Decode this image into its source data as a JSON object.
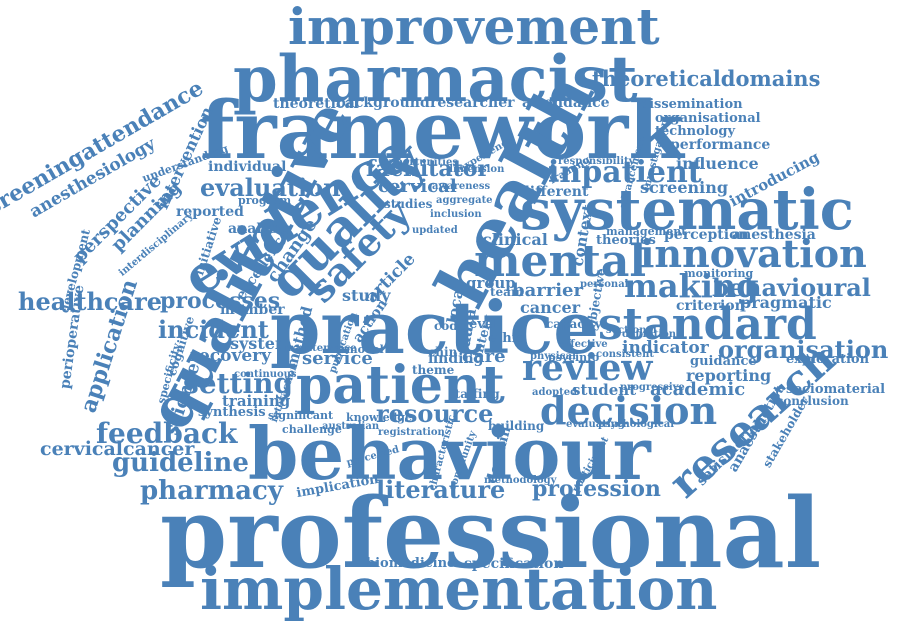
{
  "text_color": "#4a81b8",
  "background": "#ffffff",
  "words": [
    {
      "text": "improvement"
    },
    {
      "text": "pharmacist"
    },
    {
      "text": "framework"
    },
    {
      "text": "theoreticaldomains"
    },
    {
      "text": "theoretical"
    },
    {
      "text": "background"
    },
    {
      "text": "researcher"
    },
    {
      "text": "attendance"
    },
    {
      "text": "dissemination"
    },
    {
      "text": "organisational"
    },
    {
      "text": "technology"
    },
    {
      "text": "performance"
    },
    {
      "text": "influence"
    },
    {
      "text": "introducing"
    },
    {
      "text": "screeningattendance"
    },
    {
      "text": "anesthesiology"
    },
    {
      "text": "intervention"
    },
    {
      "text": "understanding"
    },
    {
      "text": "individual"
    },
    {
      "text": "evaluation"
    },
    {
      "text": "facilitator"
    },
    {
      "text": "inpatient"
    },
    {
      "text": "screening"
    },
    {
      "text": "cervical"
    },
    {
      "text": "different"
    },
    {
      "text": "qualitative"
    },
    {
      "text": "evidence"
    },
    {
      "text": "quality"
    },
    {
      "text": "health"
    },
    {
      "text": "systematic"
    },
    {
      "text": "safety"
    },
    {
      "text": "perspective"
    },
    {
      "text": "planning"
    },
    {
      "text": "program"
    },
    {
      "text": "reported"
    },
    {
      "text": "studies"
    },
    {
      "text": "clinical"
    },
    {
      "text": "theories"
    },
    {
      "text": "perception"
    },
    {
      "text": "anesthesia"
    },
    {
      "text": "innovation"
    },
    {
      "text": "mental"
    },
    {
      "text": "healthcare"
    },
    {
      "text": "analysis"
    },
    {
      "text": "excellence"
    },
    {
      "text": "change"
    },
    {
      "text": "article"
    },
    {
      "text": "barrier"
    },
    {
      "text": "cancer"
    },
    {
      "text": "making"
    },
    {
      "text": "behavioural"
    },
    {
      "text": "monitoring"
    },
    {
      "text": "pragmatic"
    },
    {
      "text": "application"
    },
    {
      "text": "processes"
    },
    {
      "text": "action"
    },
    {
      "text": "study"
    },
    {
      "text": "practice"
    },
    {
      "text": "criterion"
    },
    {
      "text": "standard"
    },
    {
      "text": "incident"
    },
    {
      "text": "member"
    },
    {
      "text": "method"
    },
    {
      "text": "capacity"
    },
    {
      "text": "organisation"
    },
    {
      "text": "system"
    },
    {
      "text": "indicator"
    },
    {
      "text": "recovery"
    },
    {
      "text": "service"
    },
    {
      "text": "finding"
    },
    {
      "text": "care"
    },
    {
      "text": "review"
    },
    {
      "text": "guidance"
    },
    {
      "text": "exploration"
    },
    {
      "text": "patient"
    },
    {
      "text": "setting"
    },
    {
      "text": "reporting"
    },
    {
      "text": "academic"
    },
    {
      "text": "science"
    },
    {
      "text": "perioperative"
    },
    {
      "text": "student"
    },
    {
      "text": "sociomaterial"
    },
    {
      "text": "conclusion"
    },
    {
      "text": "training"
    },
    {
      "text": "synthesis"
    },
    {
      "text": "resource"
    },
    {
      "text": "decision"
    },
    {
      "text": "research"
    },
    {
      "text": "anaesthetist"
    },
    {
      "text": "stakeholder"
    },
    {
      "text": "satisfaction"
    },
    {
      "text": "feedback"
    },
    {
      "text": "cervicalcancer"
    },
    {
      "text": "guideline"
    },
    {
      "text": "behaviour"
    },
    {
      "text": "pharmacy"
    },
    {
      "text": "literature"
    },
    {
      "text": "profession"
    },
    {
      "text": "professional"
    },
    {
      "text": "biomedicine"
    },
    {
      "text": "specification"
    },
    {
      "text": "implementation"
    },
    {
      "text": "building"
    },
    {
      "text": "domain"
    },
    {
      "text": "staffing"
    },
    {
      "text": "implication"
    },
    {
      "text": "development"
    },
    {
      "text": "specificity"
    },
    {
      "text": "cognitive"
    },
    {
      "text": "interdisciplinary"
    },
    {
      "text": "initiative"
    },
    {
      "text": "significant"
    },
    {
      "text": "challenge"
    },
    {
      "text": "knowledge"
    },
    {
      "text": "theme"
    },
    {
      "text": "ethic"
    },
    {
      "text": "team"
    },
    {
      "text": "code"
    },
    {
      "text": "level"
    },
    {
      "text": "local"
    },
    {
      "text": "group"
    },
    {
      "text": "data"
    },
    {
      "text": "context"
    },
    {
      "text": "management"
    },
    {
      "text": "advancement"
    },
    {
      "text": "investigation"
    },
    {
      "text": "continuous"
    },
    {
      "text": "awareness"
    },
    {
      "text": "inclusion"
    },
    {
      "text": "dimension"
    },
    {
      "text": "sectional"
    },
    {
      "text": "evaluating"
    },
    {
      "text": "psychological"
    },
    {
      "text": "consistent"
    },
    {
      "text": "effective"
    },
    {
      "text": "progressive"
    },
    {
      "text": "objective"
    },
    {
      "text": "australian"
    },
    {
      "text": "perceived"
    },
    {
      "text": "methodology"
    },
    {
      "text": "community"
    },
    {
      "text": "characteristic"
    },
    {
      "text": "registration"
    },
    {
      "text": "participant"
    },
    {
      "text": "adopted"
    },
    {
      "text": "personal"
    },
    {
      "text": "definition"
    },
    {
      "text": "model"
    },
    {
      "text": "publication"
    },
    {
      "text": "interaction"
    },
    {
      "text": "maintenance"
    },
    {
      "text": "opportunities"
    },
    {
      "text": "experience"
    },
    {
      "text": "responsibility"
    },
    {
      "text": "updated"
    },
    {
      "text": "aggregate"
    },
    {
      "text": "framing"
    },
    {
      "text": "psycinfo"
    },
    {
      "text": "physical"
    },
    {
      "text": "chin"
    },
    {
      "text": "interv"
    }
  ]
}
